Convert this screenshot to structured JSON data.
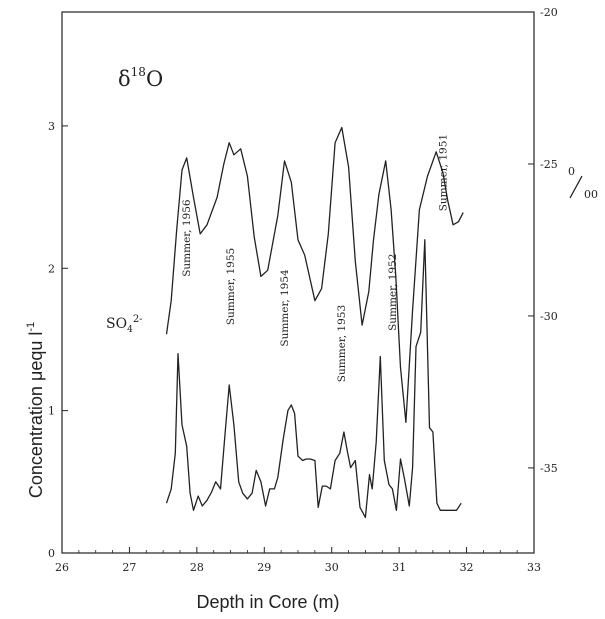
{
  "chart_data": {
    "type": "line",
    "xlabel": "Depth in Core (m)",
    "ylabel": "Concentration μequ l",
    "ylabel_superscript": "-1",
    "right_axis_label_numerator": "0",
    "right_axis_label_denominator": "00",
    "xlim": [
      26,
      33
    ],
    "ylim_left": [
      0,
      3.8
    ],
    "ylim_right": [
      -37.8,
      -20
    ],
    "x_ticks": [
      26,
      27,
      28,
      29,
      30,
      31,
      32,
      33
    ],
    "x_tick_labels": [
      "26",
      "27",
      "28",
      "29",
      "30",
      "31",
      "32",
      "33"
    ],
    "y_ticks_left": [
      0,
      1,
      2,
      3
    ],
    "y_tick_labels_left": [
      "0",
      "1",
      "2",
      "3"
    ],
    "y_ticks_right": [
      -20,
      -25,
      -30,
      -35
    ],
    "y_tick_labels_right": [
      "-20",
      "-25",
      "-30",
      "-35"
    ],
    "series": [
      {
        "name": "δ¹⁸O",
        "label_base": "δ",
        "label_sup": "18",
        "label_tail": "O",
        "axis": "right",
        "x": [
          27.55,
          27.62,
          27.7,
          27.78,
          27.85,
          27.95,
          28.05,
          28.15,
          28.3,
          28.4,
          28.48,
          28.55,
          28.65,
          28.75,
          28.85,
          28.95,
          29.05,
          29.2,
          29.3,
          29.4,
          29.5,
          29.6,
          29.75,
          29.85,
          29.95,
          30.05,
          30.15,
          30.25,
          30.35,
          30.45,
          30.55,
          30.62,
          30.7,
          30.8,
          30.88,
          30.95,
          31.02,
          31.1,
          31.2,
          31.3,
          31.42,
          31.55,
          31.65,
          31.72,
          31.8,
          31.88,
          31.95
        ],
        "y": [
          -30.6,
          -29.5,
          -27.2,
          -25.2,
          -24.8,
          -26.1,
          -27.3,
          -27.0,
          -26.1,
          -25.0,
          -24.3,
          -24.7,
          -24.5,
          -25.4,
          -27.4,
          -28.7,
          -28.5,
          -26.7,
          -24.9,
          -25.6,
          -27.5,
          -28.0,
          -29.5,
          -29.1,
          -27.3,
          -24.3,
          -23.8,
          -25.1,
          -28.2,
          -30.3,
          -29.2,
          -27.5,
          -26.0,
          -24.9,
          -26.5,
          -28.7,
          -31.7,
          -33.5,
          -29.8,
          -26.5,
          -25.4,
          -24.6,
          -25.3,
          -26.2,
          -27.0,
          -26.9,
          -26.6
        ]
      },
      {
        "name": "SO₄²⁻",
        "label_base": "SO",
        "label_sub": "4",
        "label_sup": "2-",
        "axis": "left",
        "x": [
          27.55,
          27.62,
          27.68,
          27.72,
          27.78,
          27.85,
          27.9,
          27.95,
          28.02,
          28.08,
          28.15,
          28.22,
          28.28,
          28.35,
          28.42,
          28.48,
          28.55,
          28.62,
          28.68,
          28.75,
          28.82,
          28.88,
          28.95,
          29.02,
          29.08,
          29.15,
          29.2,
          29.28,
          29.35,
          29.4,
          29.45,
          29.5,
          29.57,
          29.62,
          29.68,
          29.75,
          29.8,
          29.86,
          29.92,
          29.98,
          30.05,
          30.12,
          30.18,
          30.23,
          30.28,
          30.35,
          30.42,
          30.5,
          30.56,
          30.6,
          30.66,
          30.72,
          30.78,
          30.85,
          30.9,
          30.96,
          31.02,
          31.08,
          31.15,
          31.2,
          31.25,
          31.32,
          31.38,
          31.45,
          31.5,
          31.56,
          31.61,
          31.66,
          31.71,
          31.78,
          31.85,
          31.92
        ],
        "y": [
          0.35,
          0.45,
          0.7,
          1.4,
          0.9,
          0.75,
          0.42,
          0.3,
          0.4,
          0.33,
          0.37,
          0.43,
          0.5,
          0.45,
          0.85,
          1.18,
          0.9,
          0.5,
          0.42,
          0.38,
          0.42,
          0.58,
          0.5,
          0.33,
          0.45,
          0.45,
          0.53,
          0.8,
          1.0,
          1.04,
          0.98,
          0.68,
          0.65,
          0.66,
          0.66,
          0.65,
          0.32,
          0.47,
          0.47,
          0.45,
          0.65,
          0.7,
          0.85,
          0.72,
          0.6,
          0.65,
          0.32,
          0.25,
          0.55,
          0.45,
          0.78,
          1.38,
          0.65,
          0.48,
          0.45,
          0.3,
          0.66,
          0.52,
          0.33,
          0.6,
          1.45,
          1.55,
          2.2,
          0.88,
          0.85,
          0.35,
          0.3,
          0.3,
          0.3,
          0.3,
          0.3,
          0.35
        ]
      }
    ],
    "annotations": [
      {
        "text": "Summer, 1956",
        "x": 27.9,
        "y": 1.94
      },
      {
        "text": "Summer, 1955",
        "x": 28.55,
        "y": 1.6
      },
      {
        "text": "Summer, 1954",
        "x": 29.35,
        "y": 1.45
      },
      {
        "text": "Summer, 1953",
        "x": 30.2,
        "y": 1.2
      },
      {
        "text": "Summer, 1952",
        "x": 30.95,
        "y": 1.56
      },
      {
        "text": "Summer, 1951",
        "x": 31.7,
        "y": 2.4
      }
    ],
    "grid": false
  }
}
